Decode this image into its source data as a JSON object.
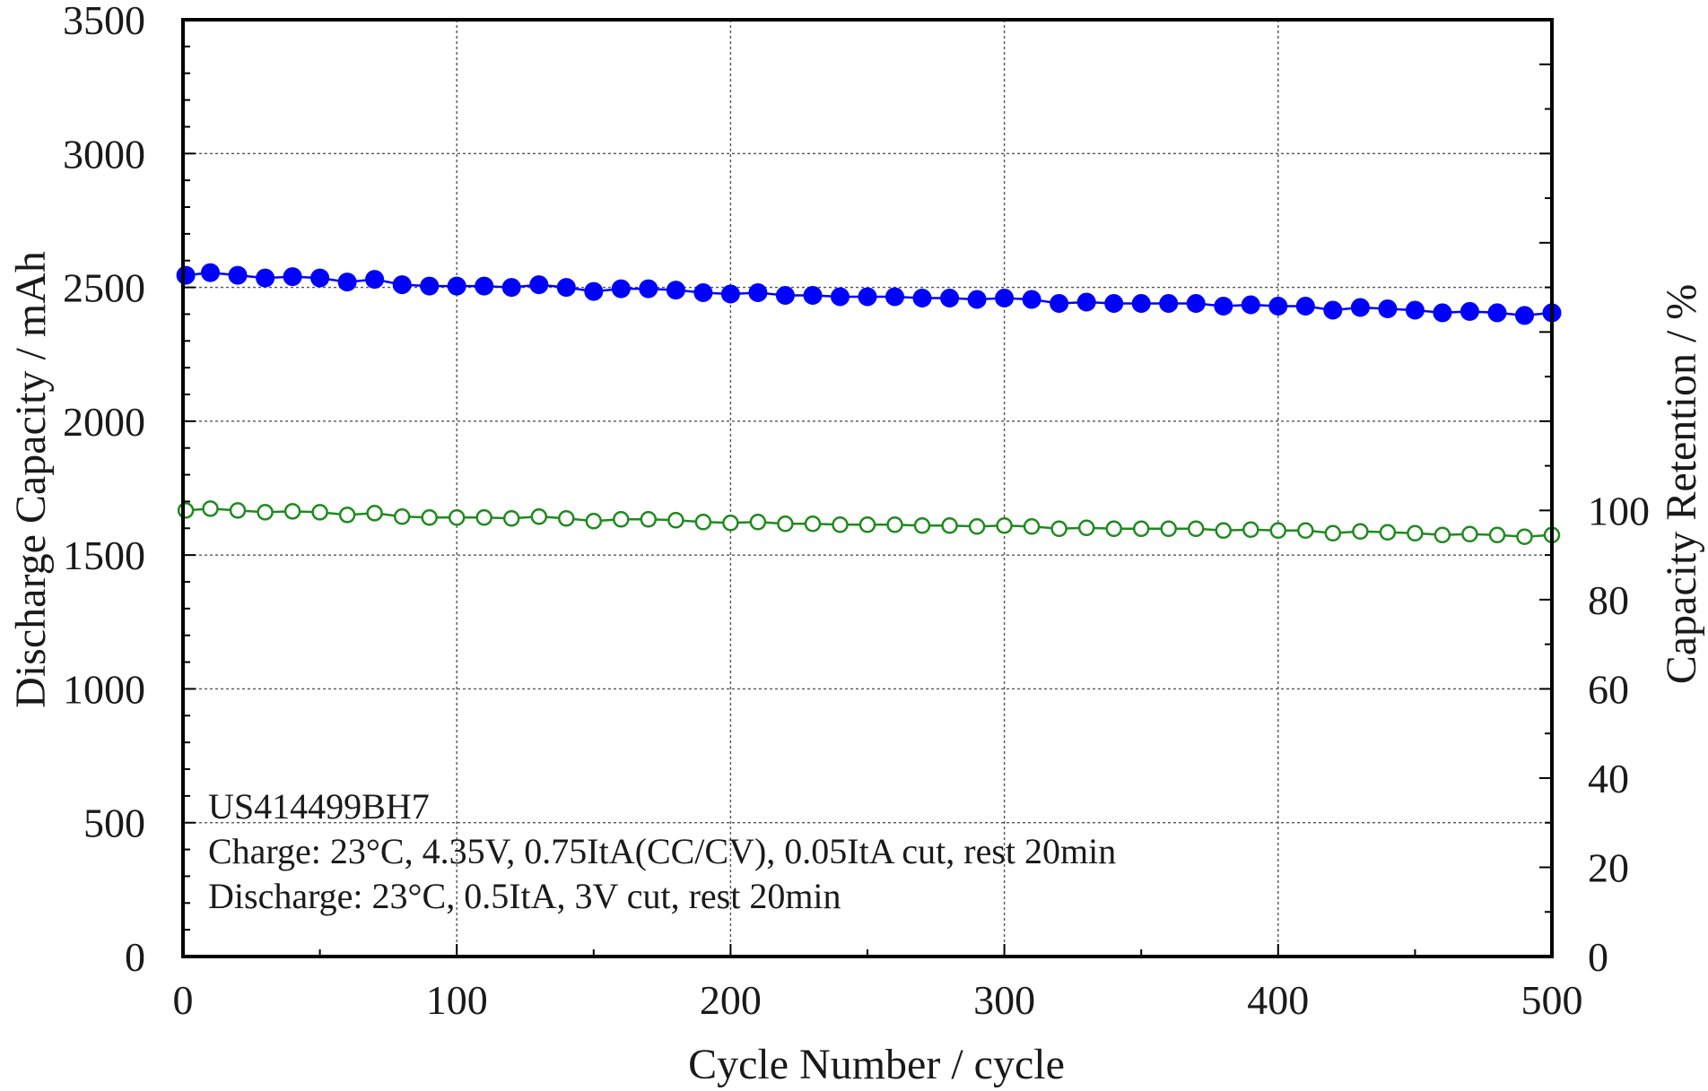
{
  "chart_data": {
    "type": "line",
    "title": "",
    "xlabel": "Cycle Number / cycle",
    "ylabel": "Discharge Capacity / mAh",
    "y2label": "Capacity Retention / %",
    "xlim": [
      0,
      500
    ],
    "ylim": [
      0,
      3500
    ],
    "y2lim": [
      0,
      210
    ],
    "x_ticks": [
      0,
      100,
      200,
      300,
      400,
      500
    ],
    "y_ticks": [
      0,
      500,
      1000,
      1500,
      2000,
      2500,
      3000,
      3500
    ],
    "y2_ticks": [
      0,
      20,
      40,
      60,
      80,
      100
    ],
    "grid": true,
    "annotations": [
      "US414499BH7",
      "Charge: 23°C, 4.35V, 0.75ItA(CC/CV), 0.05ItA cut, rest 20min",
      "Discharge: 23°C, 0.5ItA, 3V cut, rest 20min"
    ],
    "series": [
      {
        "axis": "left",
        "marker": "filled-circle",
        "color": "#0000ff",
        "x": [
          1,
          10,
          20,
          30,
          40,
          50,
          60,
          70,
          80,
          90,
          100,
          110,
          120,
          130,
          140,
          150,
          160,
          170,
          180,
          190,
          200,
          210,
          220,
          230,
          240,
          250,
          260,
          270,
          280,
          290,
          300,
          310,
          320,
          330,
          340,
          350,
          360,
          370,
          380,
          390,
          400,
          410,
          420,
          430,
          440,
          450,
          460,
          470,
          480,
          490,
          500
        ],
        "values": [
          2545,
          2555,
          2545,
          2535,
          2540,
          2535,
          2520,
          2530,
          2510,
          2505,
          2505,
          2505,
          2500,
          2510,
          2500,
          2485,
          2495,
          2495,
          2490,
          2480,
          2475,
          2480,
          2470,
          2470,
          2465,
          2465,
          2465,
          2460,
          2460,
          2455,
          2460,
          2455,
          2440,
          2445,
          2440,
          2440,
          2440,
          2440,
          2430,
          2435,
          2430,
          2430,
          2415,
          2425,
          2420,
          2415,
          2405,
          2410,
          2405,
          2395,
          2405
        ]
      },
      {
        "axis": "right",
        "marker": "open-circle",
        "color": "#1f8a1f",
        "x": [
          1,
          10,
          20,
          30,
          40,
          50,
          60,
          70,
          80,
          90,
          100,
          110,
          120,
          130,
          140,
          150,
          160,
          170,
          180,
          190,
          200,
          210,
          220,
          230,
          240,
          250,
          260,
          270,
          280,
          290,
          300,
          310,
          320,
          330,
          340,
          350,
          360,
          370,
          380,
          390,
          400,
          410,
          420,
          430,
          440,
          450,
          460,
          470,
          480,
          490,
          500
        ],
        "values": [
          100.0,
          100.4,
          100.0,
          99.6,
          99.8,
          99.6,
          99.0,
          99.4,
          98.6,
          98.4,
          98.4,
          98.4,
          98.2,
          98.6,
          98.2,
          97.6,
          98.0,
          98.0,
          97.8,
          97.4,
          97.2,
          97.4,
          97.0,
          97.0,
          96.8,
          96.8,
          96.8,
          96.6,
          96.6,
          96.4,
          96.6,
          96.4,
          95.9,
          96.1,
          95.9,
          95.9,
          95.9,
          95.9,
          95.5,
          95.7,
          95.5,
          95.5,
          94.9,
          95.3,
          95.1,
          94.9,
          94.5,
          94.7,
          94.5,
          94.1,
          94.5
        ]
      }
    ]
  }
}
